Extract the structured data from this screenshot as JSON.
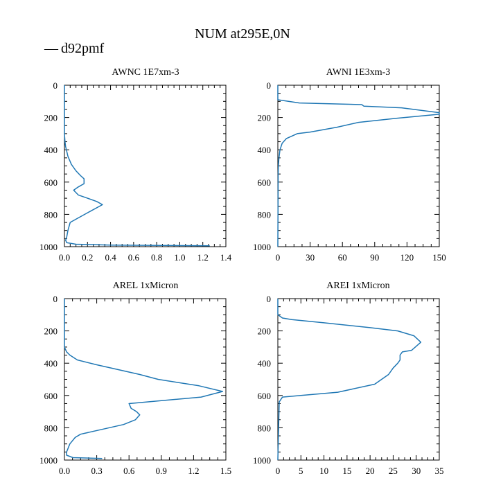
{
  "figure": {
    "title": "NUM at295E,0N",
    "legend": {
      "label": "d92pmf",
      "symbol": "—",
      "color": "#1f77b4",
      "placement": "top-left"
    }
  },
  "chart_data": [
    {
      "type": "line",
      "title": "AWNC  1E7xm-3",
      "xlim": [
        0,
        1.4
      ],
      "ylim": [
        1000,
        0
      ],
      "xticks": [
        0.0,
        0.2,
        0.4,
        0.6,
        0.8,
        1.0,
        1.2,
        1.4
      ],
      "xtick_labels": [
        "0.0",
        "0.2",
        "0.4",
        "0.6",
        "0.8",
        "1.0",
        "1.2",
        "1.4"
      ],
      "yticks": [
        0,
        200,
        400,
        600,
        800,
        1000
      ],
      "ytick_labels": [
        "0",
        "200",
        "400",
        "600",
        "800",
        "1000"
      ],
      "series": [
        {
          "name": "d92pmf",
          "x": [
            0,
            0,
            0.005,
            0.01,
            0.03,
            0.06,
            0.1,
            0.14,
            0.17,
            0.17,
            0.12,
            0.08,
            0.12,
            0.2,
            0.28,
            0.33,
            0.2,
            0.1,
            0.05,
            0.03,
            0.02,
            0.01,
            0.02,
            0.1,
            0.4,
            1.26
          ],
          "y": [
            0,
            300,
            350,
            380,
            440,
            490,
            530,
            560,
            580,
            610,
            630,
            650,
            680,
            700,
            720,
            740,
            790,
            830,
            850,
            900,
            940,
            960,
            975,
            985,
            990,
            995
          ]
        }
      ]
    },
    {
      "type": "line",
      "title": "AWNI  1E3xm-3",
      "xlim": [
        0,
        150
      ],
      "ylim": [
        1000,
        0
      ],
      "xticks": [
        0,
        30,
        60,
        90,
        120,
        150
      ],
      "xtick_labels": [
        "0",
        "30",
        "60",
        "90",
        "120",
        "150"
      ],
      "yticks": [
        0,
        200,
        400,
        600,
        800,
        1000
      ],
      "ytick_labels": [
        "0",
        "200",
        "400",
        "600",
        "800",
        "1000"
      ],
      "series": [
        {
          "name": "d92pmf",
          "x": [
            0,
            0,
            5,
            20,
            78,
            80,
            115,
            150,
            150,
            110,
            75,
            55,
            30,
            18,
            8,
            4,
            2,
            1,
            0.5,
            0.3,
            0
          ],
          "y": [
            0,
            90,
            95,
            110,
            120,
            130,
            140,
            170,
            180,
            205,
            230,
            260,
            290,
            300,
            330,
            360,
            400,
            450,
            500,
            550,
            1000
          ]
        }
      ]
    },
    {
      "type": "line",
      "title": "AREL  1xMicron",
      "xlim": [
        0,
        1.5
      ],
      "ylim": [
        1000,
        0
      ],
      "xticks": [
        0.0,
        0.3,
        0.6,
        0.9,
        1.2,
        1.5
      ],
      "xtick_labels": [
        "0.0",
        "0.3",
        "0.6",
        "0.9",
        "1.2",
        "1.5"
      ],
      "yticks": [
        0,
        200,
        400,
        600,
        800,
        1000
      ],
      "ytick_labels": [
        "0",
        "200",
        "400",
        "600",
        "800",
        "1000"
      ],
      "series": [
        {
          "name": "d92pmf",
          "x": [
            0,
            0,
            0.02,
            0.05,
            0.12,
            0.3,
            0.5,
            0.7,
            0.87,
            1.25,
            1.47,
            1.27,
            0.6,
            0.62,
            0.67,
            0.7,
            0.66,
            0.55,
            0.35,
            0.15,
            0.1,
            0.05,
            0.02,
            0.02,
            0.08,
            0.35
          ],
          "y": [
            0,
            300,
            330,
            350,
            380,
            410,
            440,
            470,
            500,
            540,
            575,
            610,
            650,
            680,
            700,
            720,
            750,
            780,
            810,
            840,
            860,
            900,
            950,
            970,
            985,
            990
          ]
        }
      ]
    },
    {
      "type": "line",
      "title": "AREI  1xMicron",
      "xlim": [
        0,
        35
      ],
      "ylim": [
        1000,
        0
      ],
      "xticks": [
        0,
        5,
        10,
        15,
        20,
        25,
        30,
        35
      ],
      "xtick_labels": [
        "0",
        "5",
        "10",
        "15",
        "20",
        "25",
        "30",
        "35"
      ],
      "yticks": [
        0,
        200,
        400,
        600,
        800,
        1000
      ],
      "ytick_labels": [
        "0",
        "200",
        "400",
        "600",
        "800",
        "1000"
      ],
      "series": [
        {
          "name": "d92pmf",
          "x": [
            0,
            0,
            1,
            3,
            10,
            20,
            26,
            29.5,
            31,
            29,
            27,
            26.5,
            26.5,
            26,
            25,
            24,
            21,
            13,
            5,
            1,
            0.3,
            0
          ],
          "y": [
            0,
            100,
            120,
            130,
            150,
            180,
            200,
            230,
            270,
            320,
            330,
            350,
            380,
            400,
            430,
            470,
            530,
            580,
            600,
            610,
            640,
            1000
          ]
        }
      ]
    }
  ]
}
